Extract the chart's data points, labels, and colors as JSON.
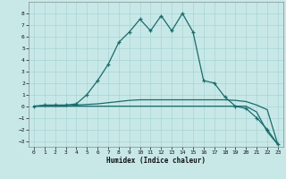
{
  "xlabel": "Humidex (Indice chaleur)",
  "background_color": "#c8e8e8",
  "grid_color": "#a8d4d4",
  "line_color": "#1a6b6b",
  "xlim": [
    -0.5,
    23.5
  ],
  "ylim": [
    -3.5,
    9.0
  ],
  "line1_x": [
    0,
    1,
    2,
    3,
    4,
    5,
    6,
    7,
    8,
    9,
    10,
    11,
    12,
    13,
    14,
    15,
    16,
    17,
    18,
    19,
    20,
    21,
    22,
    23
  ],
  "line1_y": [
    0.0,
    0.1,
    0.1,
    0.1,
    0.2,
    1.0,
    2.2,
    3.6,
    5.5,
    6.4,
    7.5,
    6.5,
    7.8,
    6.5,
    8.0,
    6.4,
    2.2,
    2.0,
    0.8,
    0.0,
    -0.2,
    -1.0,
    -2.0,
    -3.3
  ],
  "line2_x": [
    0,
    1,
    2,
    3,
    4,
    5,
    6,
    7,
    8,
    9,
    10,
    11,
    12,
    13,
    14,
    15,
    16,
    17,
    18,
    19,
    20,
    21,
    22,
    23
  ],
  "line2_y": [
    0.0,
    0.0,
    0.0,
    0.0,
    0.1,
    0.15,
    0.2,
    0.3,
    0.4,
    0.5,
    0.55,
    0.55,
    0.55,
    0.55,
    0.55,
    0.55,
    0.55,
    0.55,
    0.55,
    0.5,
    0.4,
    0.1,
    -0.3,
    -3.3
  ],
  "line3_x": [
    0,
    1,
    2,
    3,
    4,
    5,
    6,
    7,
    8,
    9,
    10,
    11,
    12,
    13,
    14,
    15,
    16,
    17,
    18,
    19,
    20,
    21,
    22,
    23
  ],
  "line3_y": [
    0.0,
    0.0,
    0.0,
    0.0,
    0.0,
    0.0,
    0.0,
    0.0,
    0.0,
    0.0,
    0.0,
    0.0,
    0.0,
    0.0,
    0.0,
    0.0,
    0.0,
    0.0,
    0.0,
    0.0,
    0.0,
    -0.5,
    -2.2,
    -3.3
  ],
  "yticks": [
    -3,
    -2,
    -1,
    0,
    1,
    2,
    3,
    4,
    5,
    6,
    7,
    8
  ],
  "xticks": [
    0,
    1,
    2,
    3,
    4,
    5,
    6,
    7,
    8,
    9,
    10,
    11,
    12,
    13,
    14,
    15,
    16,
    17,
    18,
    19,
    20,
    21,
    22,
    23
  ]
}
